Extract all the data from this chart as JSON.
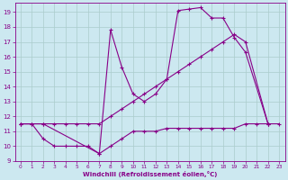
{
  "xlabel": "Windchill (Refroidissement éolien,°C)",
  "bg_color": "#cce8f0",
  "grid_color": "#aacccc",
  "line_color": "#880088",
  "xlim": [
    -0.5,
    23.5
  ],
  "ylim": [
    9,
    19.6
  ],
  "xticks": [
    0,
    1,
    2,
    3,
    4,
    5,
    6,
    7,
    8,
    9,
    10,
    11,
    12,
    13,
    14,
    15,
    16,
    17,
    18,
    19,
    20,
    21,
    22,
    23
  ],
  "yticks": [
    9,
    10,
    11,
    12,
    13,
    14,
    15,
    16,
    17,
    18,
    19
  ],
  "line_bottom_x": [
    0,
    1,
    2,
    3,
    4,
    5,
    6,
    7,
    8,
    9,
    10,
    11,
    12,
    13,
    14,
    15,
    16,
    17,
    18,
    19,
    20,
    21,
    22,
    23
  ],
  "line_bottom_y": [
    11.5,
    11.5,
    10.5,
    10.0,
    10.0,
    10.0,
    10.0,
    9.5,
    10.0,
    10.5,
    11.0,
    11.0,
    11.0,
    11.2,
    11.2,
    11.2,
    11.2,
    11.2,
    11.2,
    11.2,
    11.5,
    11.5,
    11.5,
    11.5
  ],
  "line_top_x": [
    0,
    2,
    7,
    8,
    9,
    10,
    11,
    12,
    13,
    14,
    15,
    16,
    17,
    18,
    19,
    20,
    22
  ],
  "line_top_y": [
    11.5,
    11.5,
    9.5,
    17.8,
    15.3,
    13.5,
    13.0,
    13.5,
    14.5,
    19.1,
    19.2,
    19.3,
    18.6,
    18.6,
    17.3,
    16.3,
    11.5
  ],
  "line_diag_x": [
    0,
    1,
    2,
    3,
    4,
    5,
    6,
    7,
    8,
    9,
    10,
    11,
    12,
    13,
    14,
    15,
    16,
    17,
    18,
    19,
    20,
    22
  ],
  "line_diag_y": [
    11.5,
    11.5,
    11.5,
    11.5,
    11.5,
    11.5,
    11.5,
    11.5,
    12.0,
    12.5,
    13.0,
    13.5,
    14.0,
    14.5,
    15.0,
    15.5,
    16.0,
    16.5,
    17.0,
    17.5,
    17.0,
    11.5
  ]
}
